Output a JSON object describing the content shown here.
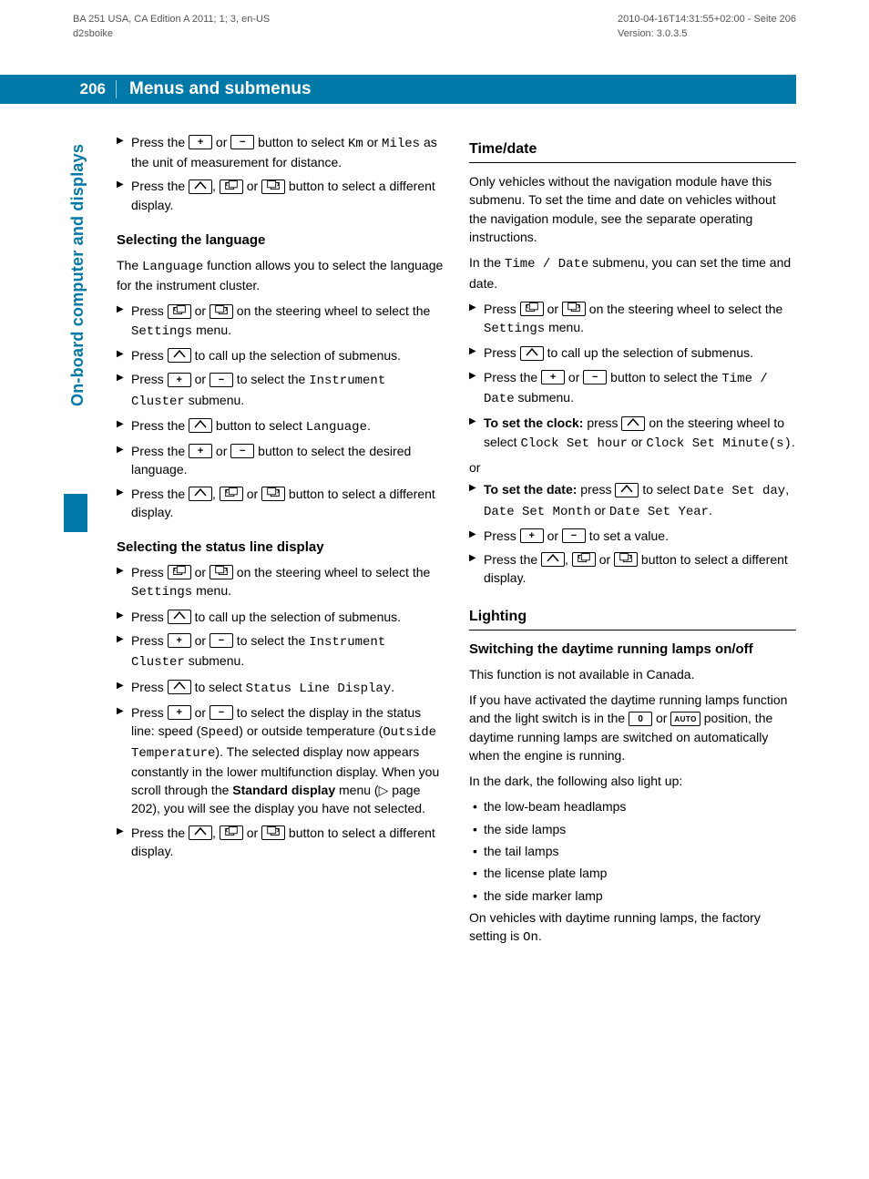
{
  "meta": {
    "left": "BA 251 USA, CA Edition A 2011; 1; 3, en-US\nd2sboike",
    "right": "2010-04-16T14:31:55+02:00 - Seite 206\nVersion: 3.0.3.5"
  },
  "header": {
    "page_number": "206",
    "title": "Menus and submenus"
  },
  "side_tab": "On-board computer and displays",
  "colors": {
    "accent": "#0078a8",
    "text": "#000000",
    "meta": "#555555",
    "bg": "#ffffff"
  },
  "left_col": {
    "intro_steps": [
      "Press the [plus] or [minus] button to select <mono>Km</mono> or <mono>Miles</mono> as the unit of measurement for distance.",
      "Press the [reset], [menu-prev] or [menu-next] button to select a different display."
    ],
    "selecting_language": {
      "heading": "Selecting the language",
      "intro": "The <mono>Language</mono> function allows you to select the language for the instrument cluster.",
      "steps": [
        "Press [menu-prev] or [menu-next] on the steering wheel to select the <mono>Settings</mono> menu.",
        "Press [reset] to call up the selection of submenus.",
        "Press [plus] or [minus] to select the <mono>Instrument Cluster</mono> submenu.",
        "Press the [reset] button to select <mono>Language</mono>.",
        "Press the [plus] or [minus] button to select the desired language.",
        "Press the [reset], [menu-prev] or [menu-next] button to select a different display."
      ]
    },
    "status_line": {
      "heading": "Selecting the status line display",
      "steps": [
        "Press [menu-prev] or [menu-next] on the steering wheel to select the <mono>Settings</mono> menu.",
        "Press [reset] to call up the selection of submenus.",
        "Press [plus] or [minus] to select the <mono>Instrument Cluster</mono> submenu.",
        "Press [reset] to select <mono>Status Line Display</mono>.",
        "Press [plus] or [minus] to select the display in the status line: speed (<mono>Speed</mono>) or outside temperature (<mono>Outside Temperature</mono>). The selected display now appears constantly in the lower multifunction display. When you scroll through the <b>Standard display</b> menu (▷ page 202), you will see the display you have not selected.",
        "Press the [reset], [menu-prev] or [menu-next] button to select a different display."
      ]
    }
  },
  "right_col": {
    "time_date": {
      "heading": "Time/date",
      "p1": "Only vehicles without the navigation module have this submenu. To set the time and date on vehicles without the navigation module, see the separate operating instructions.",
      "p2": "In the <mono>Time / Date</mono> submenu, you can set the time and date.",
      "steps": [
        "Press [menu-prev] or [menu-next] on the steering wheel to select the <mono>Settings</mono> menu.",
        "Press [reset] to call up the selection of submenus.",
        "Press the [plus] or [minus] button to select the <mono>Time / Date</mono> submenu.",
        "<b>To set the clock:</b> press [reset] on the steering wheel to select <mono>Clock Set hour</mono> or <mono>Clock Set Minute(s)</mono>."
      ],
      "or": "or",
      "steps2": [
        "<b>To set the date:</b> press [reset] to select <mono>Date Set day</mono>, <mono>Date Set Month</mono> or <mono>Date Set Year</mono>.",
        "Press [plus] or [minus] to set a value.",
        "Press the [reset], [menu-prev] or [menu-next] button to select a different display."
      ]
    },
    "lighting": {
      "heading": "Lighting",
      "sub": "Switching the daytime running lamps on/off",
      "p1": "This function is not available in Canada.",
      "p2": "If you have activated the daytime running lamps function and the light switch is in the [zero] or [auto] position, the daytime running lamps are switched on automatically when the engine is running.",
      "p3": "In the dark, the following also light up:",
      "bullets": [
        "the low-beam headlamps",
        "the side lamps",
        "the tail lamps",
        "the license plate lamp",
        "the side marker lamp"
      ],
      "p4": "On vehicles with daytime running lamps, the factory setting is <mono>On</mono>."
    }
  }
}
